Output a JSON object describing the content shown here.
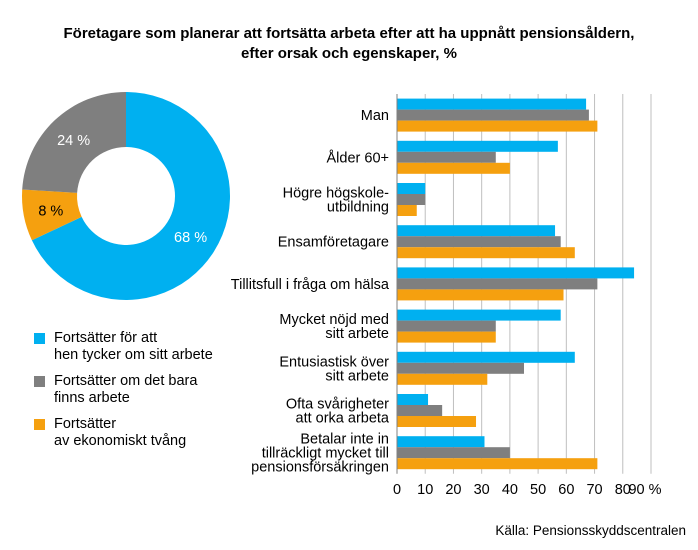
{
  "title": {
    "line1": "Företagare som planerar att fortsätta arbeta efter att ha uppnått pensionsåldern,",
    "line2": "efter orsak och egenskaper, %"
  },
  "colors": {
    "blue": "#00b0f0",
    "gray": "#7f7f7f",
    "orange": "#f5a00f",
    "grid": "#bfbfbf",
    "axis": "#808080"
  },
  "legend": [
    {
      "lines": [
        "Fortsätter för att",
        "hen tycker om sitt arbete"
      ],
      "color": "#00b0f0"
    },
    {
      "lines": [
        "Fortsätter om det bara",
        "finns arbete"
      ],
      "color": "#7f7f7f"
    },
    {
      "lines": [
        "Fortsätter",
        "av ekonomiskt tvång"
      ],
      "color": "#f5a00f"
    }
  ],
  "source": "Källa: Pensionsskyddscentralen",
  "chart_data": [
    {
      "type": "pie",
      "variant": "donut",
      "slices": [
        {
          "name": "Fortsätter för att hen tycker om sitt arbete",
          "value": 68,
          "label": "68 %",
          "color": "#00b0f0"
        },
        {
          "name": "Fortsätter av ekonomiskt tvång",
          "value": 8,
          "label": "8 %",
          "color": "#f5a00f"
        },
        {
          "name": "Fortsätter om det bara finns arbete",
          "value": 24,
          "label": "24 %",
          "color": "#7f7f7f"
        }
      ]
    },
    {
      "type": "bar",
      "orientation": "horizontal",
      "categories": [
        [
          "Man"
        ],
        [
          "Ålder 60+"
        ],
        [
          "Högre högskole-",
          "utbildning"
        ],
        [
          "Ensamföretagare"
        ],
        [
          "Tillitsfull i fråga om hälsa"
        ],
        [
          "Mycket nöjd med",
          "sitt arbete"
        ],
        [
          "Entusiastisk över",
          "sitt arbete"
        ],
        [
          "Ofta svårigheter",
          "att orka arbeta"
        ],
        [
          "Betalar inte in",
          "tillräckligt mycket till",
          "pensionsförsäkringen"
        ]
      ],
      "series": [
        {
          "name": "Fortsätter för att hen tycker om sitt arbete",
          "color": "#00b0f0",
          "values": [
            67,
            57,
            10,
            56,
            84,
            58,
            63,
            11,
            31
          ]
        },
        {
          "name": "Fortsätter om det bara finns arbete",
          "color": "#7f7f7f",
          "values": [
            68,
            35,
            10,
            58,
            71,
            35,
            45,
            16,
            40
          ]
        },
        {
          "name": "Fortsätter av ekonomiskt tvång",
          "color": "#f5a00f",
          "values": [
            71,
            40,
            7,
            63,
            59,
            35,
            32,
            28,
            71
          ]
        }
      ],
      "xlim": [
        0,
        90
      ],
      "xticks": [
        "0",
        "10",
        "20",
        "30",
        "40",
        "50",
        "60",
        "70",
        "80",
        "90 %"
      ],
      "grid": true
    }
  ]
}
